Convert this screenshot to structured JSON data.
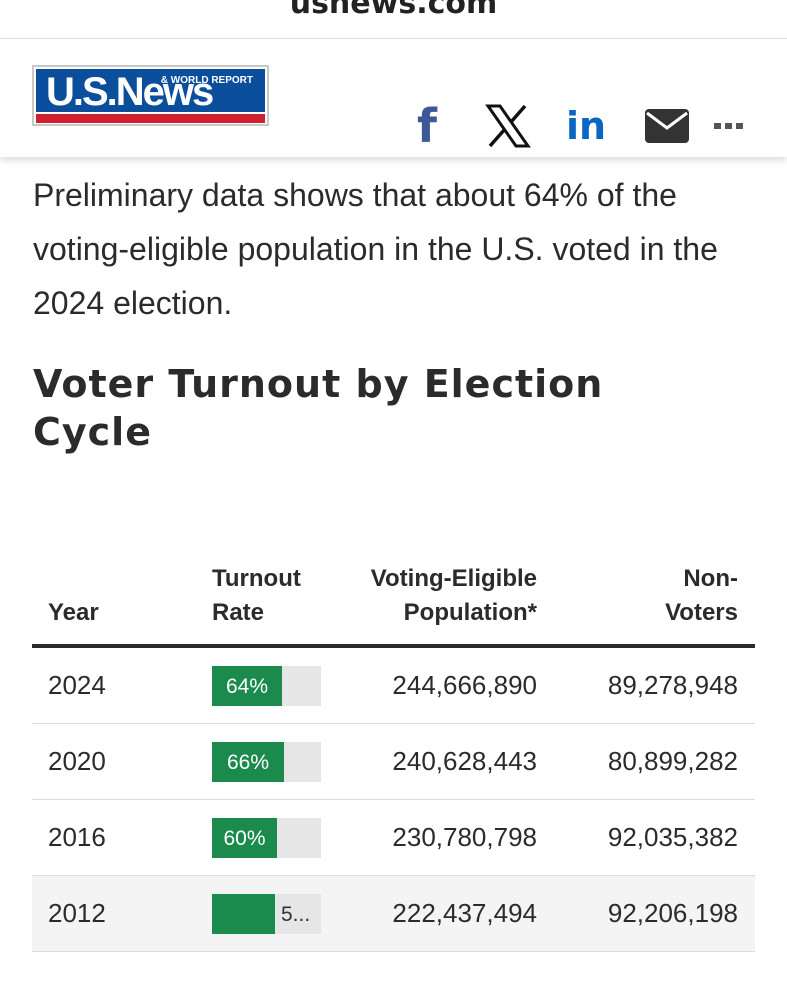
{
  "browser": {
    "url": "usnews.com"
  },
  "header": {
    "logo_main": "U.S.News",
    "logo_sub": "& WORLD REPORT",
    "share_icons": [
      "facebook-icon",
      "x-icon",
      "linkedin-icon",
      "mail-icon",
      "more-icon"
    ]
  },
  "article": {
    "intro": "Preliminary data shows that about 64% of the voting-eligible population in the U.S. voted in the 2024 election.",
    "heading": "Voter Turnout by Election Cycle"
  },
  "table": {
    "headers": {
      "year": "Year",
      "rate": "Turnout Rate",
      "population": "Voting-Eligible Population*",
      "nonvoters": "Non-Voters"
    },
    "rows": [
      {
        "year": "2024",
        "rate": 64,
        "rate_label": "64%",
        "population": "244,666,890",
        "nonvoters": "89,278,948"
      },
      {
        "year": "2020",
        "rate": 66,
        "rate_label": "66%",
        "population": "240,628,443",
        "nonvoters": "80,899,282"
      },
      {
        "year": "2016",
        "rate": 60,
        "rate_label": "60%",
        "population": "230,780,798",
        "nonvoters": "92,035,382"
      },
      {
        "year": "2012",
        "rate": 58,
        "rate_label": "5...",
        "population": "222,437,494",
        "nonvoters": "92,206,198"
      }
    ]
  },
  "colors": {
    "bar_fill": "#1a8a4d",
    "bar_track": "#e6e6e6",
    "logo_blue": "#0b4f9c",
    "logo_red": "#d0202e"
  }
}
